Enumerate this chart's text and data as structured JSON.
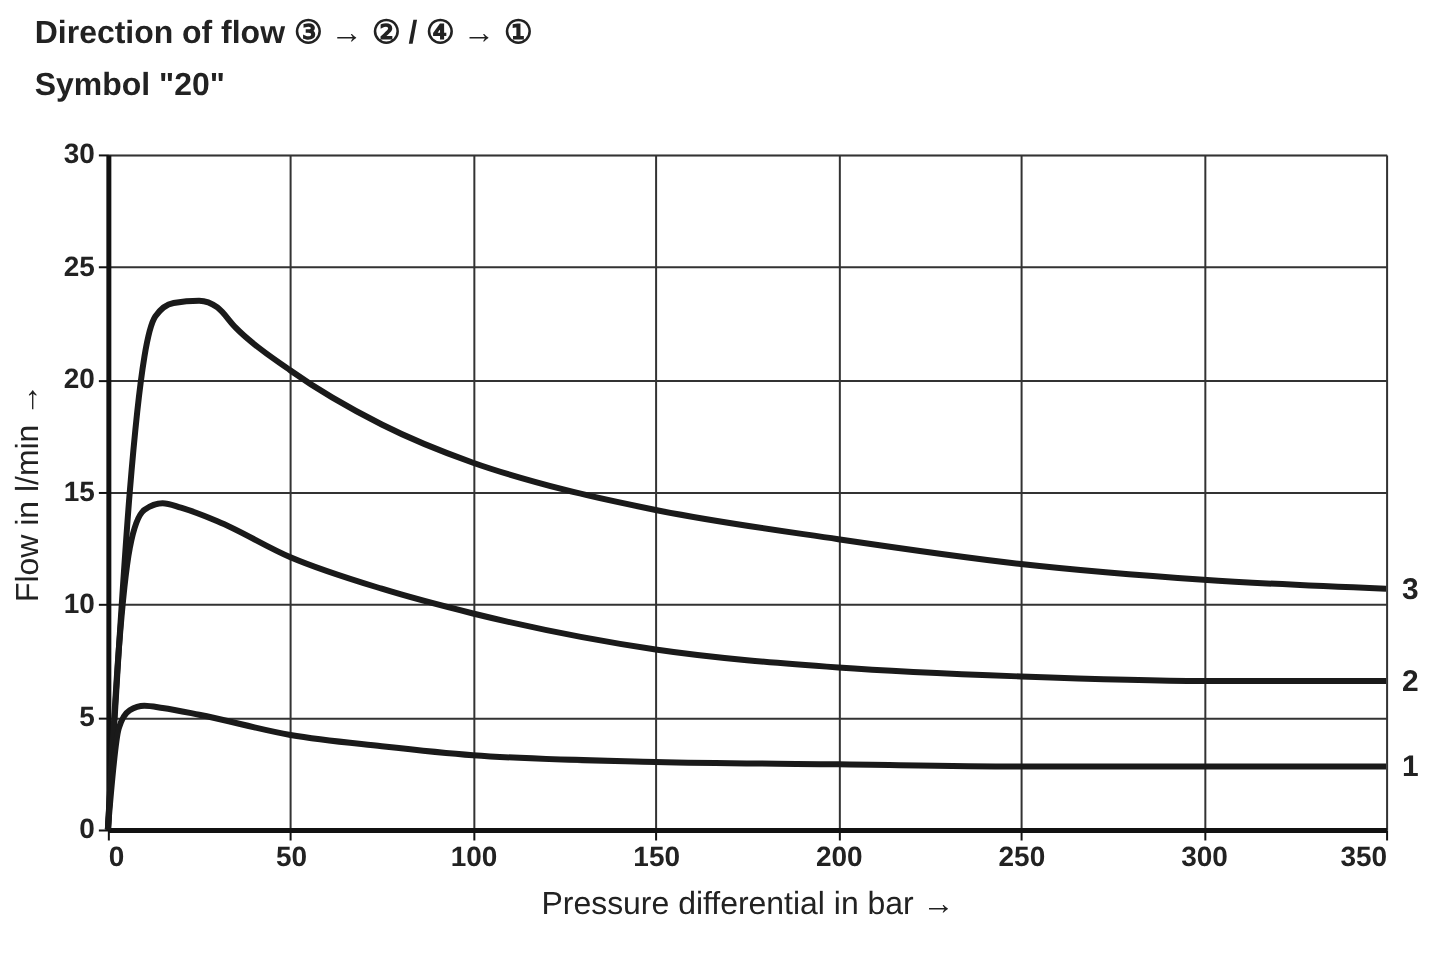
{
  "chart_data": {
    "type": "line",
    "title": "Direction of flow ③ → ② / ④ → ①",
    "subtitle": "Symbol \"20\"",
    "xlabel": "Pressure differential in bar →",
    "ylabel": "Flow in l/min →",
    "xlim": [
      0,
      350
    ],
    "xticks": [
      0,
      50,
      100,
      150,
      200,
      250,
      300,
      350
    ],
    "ylim": [
      0,
      30
    ],
    "yticks": [
      0,
      5,
      10,
      15,
      20,
      25,
      30
    ],
    "grid": true,
    "legend": false,
    "line_style": "solid",
    "marker": "none",
    "series": [
      {
        "name": "3",
        "color": "#1a1a1a",
        "x": [
          0,
          3,
          6,
          10,
          13,
          18,
          25,
          30,
          35,
          50,
          75,
          100,
          125,
          150,
          200,
          250,
          300,
          350
        ],
        "values": [
          0,
          8,
          15,
          21,
          22.8,
          23.4,
          23.5,
          23.2,
          22.3,
          20.4,
          18,
          16.3,
          15.1,
          14.2,
          12.9,
          11.8,
          11.1,
          10.7
        ]
      },
      {
        "name": "2",
        "color": "#1a1a1a",
        "x": [
          0,
          3,
          6,
          10,
          15,
          20,
          30,
          50,
          75,
          100,
          150,
          200,
          250,
          300,
          350
        ],
        "values": [
          0,
          8,
          12.5,
          14.2,
          14.5,
          14.3,
          13.7,
          12.1,
          10.7,
          9.6,
          8.0,
          7.2,
          6.8,
          6.6,
          6.6
        ]
      },
      {
        "name": "1",
        "color": "#1a1a1a",
        "x": [
          0,
          3,
          6,
          10,
          15,
          25,
          50,
          75,
          100,
          150,
          200,
          250,
          300,
          350
        ],
        "values": [
          0,
          4.5,
          5.3,
          5.5,
          5.4,
          5.1,
          4.2,
          3.7,
          3.3,
          3.0,
          2.9,
          2.8,
          2.8,
          2.8
        ]
      }
    ]
  }
}
